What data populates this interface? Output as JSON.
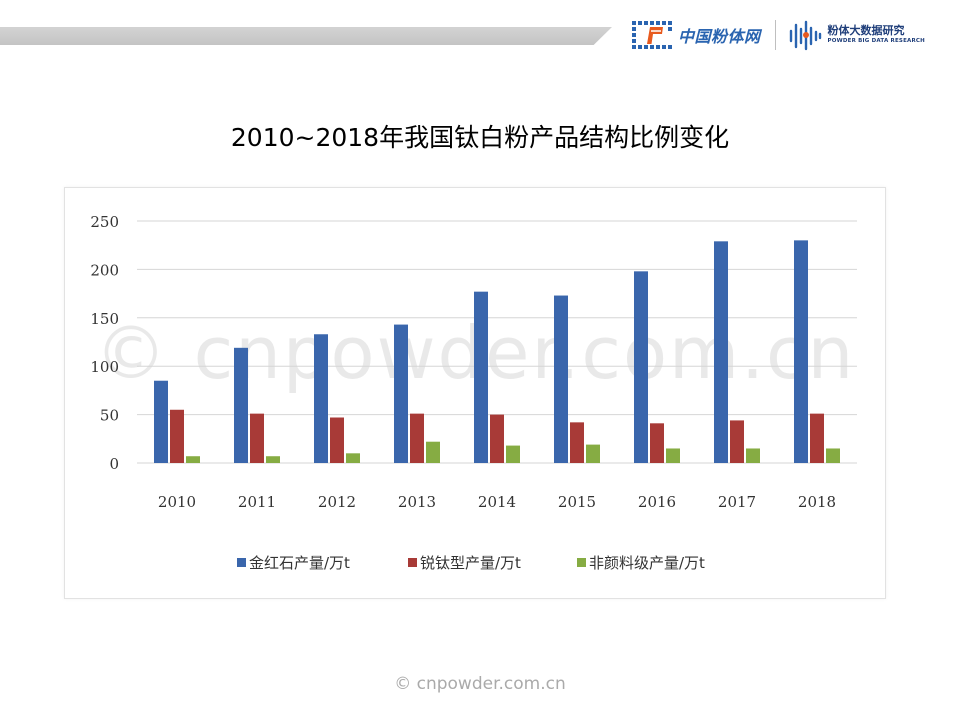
{
  "header": {
    "logo1_text": "中国粉体网",
    "logo2_cn": "粉体大数据研究",
    "logo2_en": "POWDER BIG DATA RESEARCH"
  },
  "title": "2010~2018年我国钛白粉产品结构比例变化",
  "chart_watermark": "© cnpowder.com.cn",
  "footer_watermark": "© cnpowder.com.cn",
  "colors": {
    "rutile": "#3a66ac",
    "anatase": "#a83a37",
    "nonpigment": "#86ac43",
    "grid": "#d6d6d6",
    "logo_blue": "#2a64b0"
  },
  "chart_data": {
    "type": "bar",
    "title": "2010~2018年我国钛白粉产品结构比例变化",
    "xlabel": "",
    "ylabel": "",
    "categories": [
      "2010",
      "2011",
      "2012",
      "2013",
      "2014",
      "2015",
      "2016",
      "2017",
      "2018"
    ],
    "series": [
      {
        "name": "金红石产量/万t",
        "color": "#3a66ac",
        "values": [
          85,
          119,
          133,
          143,
          177,
          173,
          198,
          229,
          230
        ]
      },
      {
        "name": "锐钛型产量/万t",
        "color": "#a83a37",
        "values": [
          55,
          51,
          47,
          51,
          50,
          42,
          41,
          44,
          51
        ]
      },
      {
        "name": "非颜料级产量/万t",
        "color": "#86ac43",
        "values": [
          7,
          7,
          10,
          22,
          18,
          19,
          15,
          15,
          15
        ]
      }
    ],
    "ylim": [
      0,
      250
    ],
    "yticks": [
      "0",
      "50",
      "100",
      "150",
      "200",
      "250"
    ],
    "grid": true,
    "legend_position": "bottom"
  }
}
